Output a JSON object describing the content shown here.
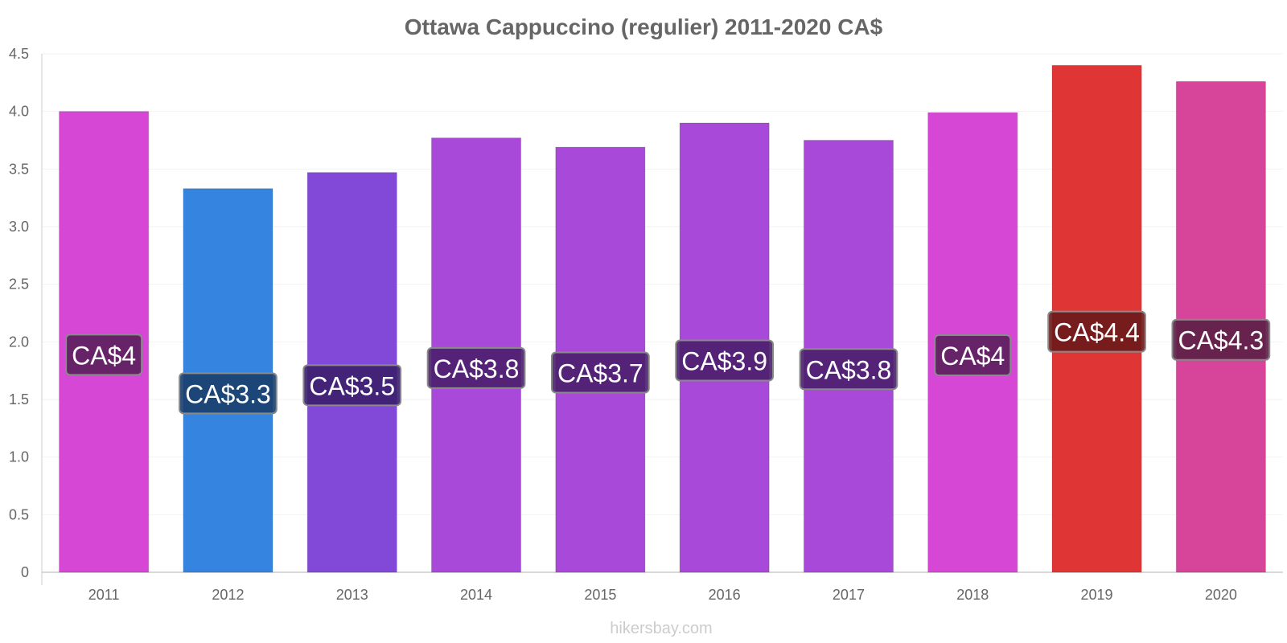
{
  "chart_data": {
    "type": "bar",
    "title": "Ottawa Cappuccino (regulier) 2011-2020 CA$",
    "xlabel": "",
    "ylabel": "",
    "categories": [
      "2011",
      "2012",
      "2013",
      "2014",
      "2015",
      "2016",
      "2017",
      "2018",
      "2019",
      "2020"
    ],
    "values": [
      4.0,
      3.33,
      3.47,
      3.77,
      3.69,
      3.9,
      3.75,
      3.99,
      4.4,
      4.26
    ],
    "value_labels": [
      "CA$4",
      "CA$3.3",
      "CA$3.5",
      "CA$3.8",
      "CA$3.7",
      "CA$3.9",
      "CA$3.8",
      "CA$4",
      "CA$4.4",
      "CA$4.3"
    ],
    "bar_colors": [
      "#d547d4",
      "#3584e0",
      "#8249d9",
      "#a849d9",
      "#a849d9",
      "#a849d9",
      "#a849d9",
      "#d547d4",
      "#e03535",
      "#d64599"
    ],
    "label_bg_colors": [
      "#5b1f5b",
      "#1a3f6b",
      "#3b1f6b",
      "#4a1f6b",
      "#4a1f6b",
      "#4a1f6b",
      "#4a1f6b",
      "#5b1f5b",
      "#6b1a1a",
      "#5b1f45"
    ],
    "ylim": [
      0,
      4.5
    ],
    "yticks": [
      "0",
      "0.5",
      "1.0",
      "1.5",
      "2.0",
      "2.5",
      "3.0",
      "3.5",
      "4.0",
      "4.5"
    ],
    "grid": true,
    "legend": "none"
  },
  "watermark": "hikersbay.com"
}
